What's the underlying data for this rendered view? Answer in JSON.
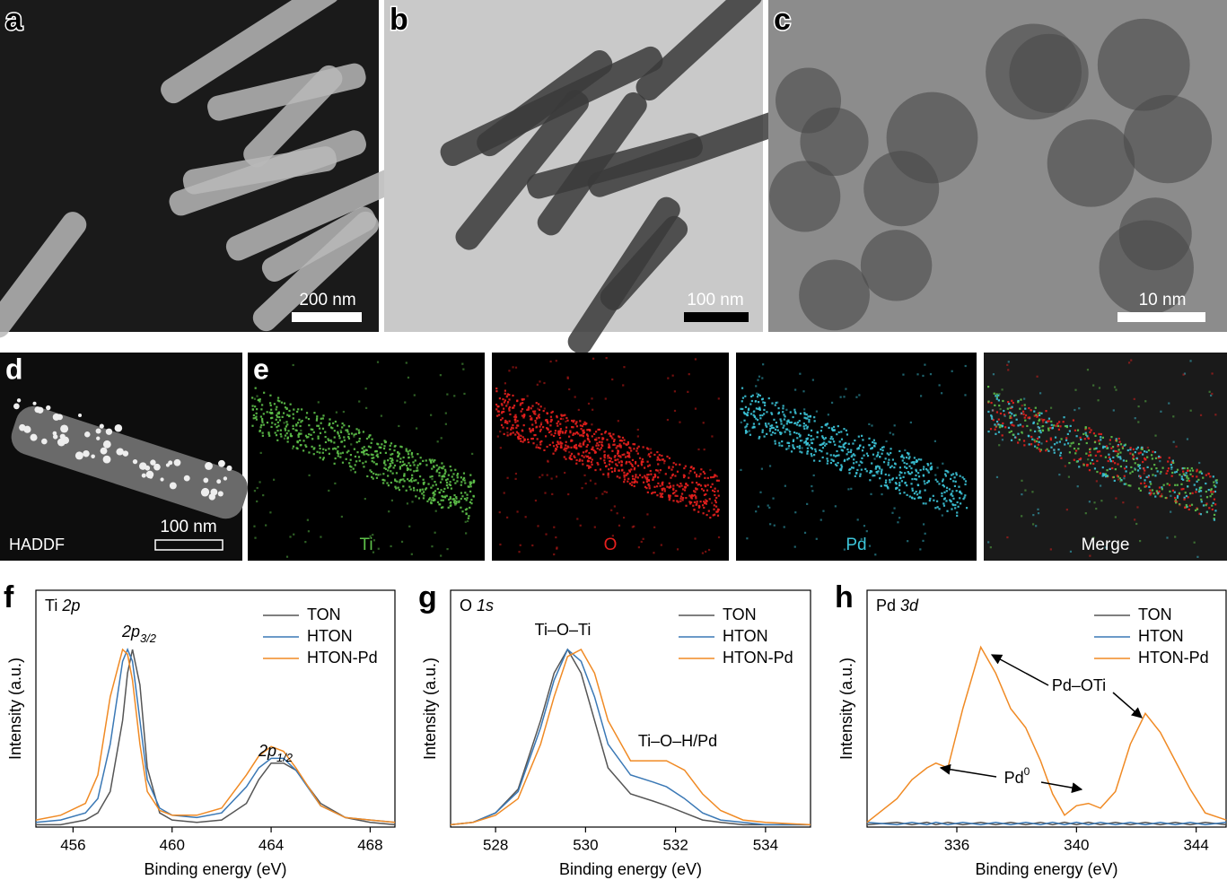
{
  "micrographs": [
    {
      "letter": "a",
      "scale_bar": "200 nm"
    },
    {
      "letter": "b",
      "scale_bar": "100 nm"
    },
    {
      "letter": "c",
      "scale_bar": "10 nm"
    }
  ],
  "haadf": {
    "letter": "d",
    "label": "HADDF",
    "scale_bar": "100 nm"
  },
  "mapping": {
    "letter": "e",
    "maps": [
      {
        "label": "Ti",
        "color": "#5ec24a"
      },
      {
        "label": "O",
        "color": "#e8201e"
      },
      {
        "label": "Pd",
        "color": "#3cc4d8"
      },
      {
        "label": "Merge",
        "color": "#ffffff"
      }
    ]
  },
  "chart_data": [
    {
      "type": "line",
      "panel": "f",
      "element": "Ti",
      "orbital": "2p",
      "x_label": "Binding energy (eV)",
      "y_label": "Intensity (a.u.)",
      "xlim": [
        454.5,
        469
      ],
      "xticks": [
        456,
        460,
        464,
        468
      ],
      "ylim": [
        0,
        100
      ],
      "legend": "upper right",
      "annotations": [
        {
          "text": "2p",
          "sub": "3/2",
          "italic": true
        },
        {
          "text": "2p",
          "sub": "1/2",
          "italic": true
        }
      ],
      "x": [
        454.5,
        455.5,
        456.5,
        457,
        457.5,
        458,
        458.2,
        458.4,
        458.7,
        459,
        459.5,
        460,
        461,
        462,
        463,
        463.5,
        464,
        464.5,
        465,
        466,
        467,
        468,
        469
      ],
      "series": [
        {
          "name": "TON",
          "color": "#555555",
          "values": [
            1,
            1,
            3,
            6,
            15,
            45,
            65,
            75,
            60,
            25,
            6,
            3,
            2,
            3,
            10,
            20,
            27,
            27,
            24,
            10,
            4,
            2,
            1
          ]
        },
        {
          "name": "HTON",
          "color": "#3a78b5",
          "values": [
            2,
            3,
            6,
            12,
            35,
            70,
            75,
            70,
            45,
            20,
            8,
            5,
            4,
            6,
            17,
            25,
            29,
            29,
            24,
            9,
            4,
            3,
            2
          ]
        },
        {
          "name": "HTON-Pd",
          "color": "#f08a24",
          "values": [
            3,
            5,
            10,
            22,
            55,
            75,
            73,
            62,
            35,
            15,
            7,
            5,
            5,
            8,
            22,
            30,
            34,
            32,
            25,
            9,
            4,
            3,
            2
          ]
        }
      ]
    },
    {
      "type": "line",
      "panel": "g",
      "element": "O",
      "orbital": "1s",
      "x_label": "Binding energy (eV)",
      "y_label": "Intensity (a.u.)",
      "xlim": [
        527,
        535
      ],
      "xticks": [
        528,
        530,
        532,
        534
      ],
      "ylim": [
        0,
        100
      ],
      "legend": "upper right",
      "annotations": [
        {
          "text": "Ti–O–Ti"
        },
        {
          "text": "Ti–O–H/Pd"
        }
      ],
      "x": [
        527,
        527.5,
        528,
        528.5,
        529,
        529.3,
        529.6,
        529.9,
        530.2,
        530.5,
        531,
        531.5,
        531.8,
        532.2,
        532.6,
        533,
        533.5,
        534,
        535
      ],
      "series": [
        {
          "name": "TON",
          "color": "#555555",
          "values": [
            1,
            2,
            6,
            16,
            45,
            65,
            75,
            65,
            45,
            25,
            14,
            11,
            9,
            6,
            3,
            2,
            1,
            1,
            1
          ]
        },
        {
          "name": "HTON",
          "color": "#3a78b5",
          "values": [
            1,
            2,
            6,
            15,
            42,
            62,
            75,
            70,
            55,
            35,
            22,
            19,
            17,
            12,
            6,
            3,
            2,
            1,
            1
          ]
        },
        {
          "name": "HTON-Pd",
          "color": "#f08a24",
          "values": [
            1,
            2,
            5,
            12,
            35,
            55,
            72,
            75,
            65,
            45,
            28,
            28,
            28,
            24,
            14,
            7,
            3,
            2,
            1
          ]
        }
      ]
    },
    {
      "type": "line",
      "panel": "h",
      "element": "Pd",
      "orbital": "3d",
      "x_label": "Binding energy (eV)",
      "y_label": "Intensity (a.u.)",
      "xlim": [
        333,
        345
      ],
      "xticks": [
        336,
        340,
        344
      ],
      "ylim": [
        0,
        100
      ],
      "legend": "upper right",
      "annotations": [
        {
          "text": "Pd–OTi"
        },
        {
          "text": "Pd",
          "sup": "0"
        }
      ],
      "x": [
        333,
        334,
        334.5,
        335,
        335.3,
        335.7,
        336.2,
        336.8,
        337.3,
        337.8,
        338.3,
        338.8,
        339.2,
        339.6,
        340,
        340.4,
        340.8,
        341.3,
        341.8,
        342.3,
        342.8,
        343.3,
        343.8,
        344.3,
        345
      ],
      "series": [
        {
          "name": "TON",
          "color": "#555555",
          "values": [
            1,
            2,
            1,
            2,
            1,
            2,
            1,
            2,
            1,
            2,
            1,
            2,
            1,
            2,
            1,
            2,
            1,
            2,
            1,
            2,
            1,
            2,
            1,
            2,
            1
          ]
        },
        {
          "name": "HTON",
          "color": "#3a78b5",
          "values": [
            2,
            1,
            2,
            1,
            2,
            1,
            2,
            1,
            2,
            1,
            2,
            1,
            2,
            1,
            2,
            1,
            2,
            1,
            2,
            1,
            2,
            1,
            2,
            1,
            2
          ]
        },
        {
          "name": "HTON-Pd",
          "color": "#f08a24",
          "values": [
            2,
            12,
            20,
            25,
            27,
            25,
            50,
            76,
            65,
            50,
            42,
            28,
            14,
            5,
            9,
            10,
            8,
            15,
            35,
            48,
            40,
            28,
            16,
            6,
            3
          ]
        }
      ]
    }
  ]
}
